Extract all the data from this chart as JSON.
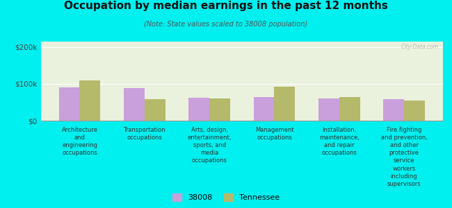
{
  "title": "Occupation by median earnings in the past 12 months",
  "subtitle": "(Note: State values scaled to 38008 population)",
  "background_color": "#00EFEF",
  "plot_bg_color": "#eaf2de",
  "categories": [
    "Architecture\nand\nengineering\noccupations",
    "Transportation\noccupations",
    "Arts, design,\nentertainment,\nsports, and\nmedia\noccupations",
    "Management\noccupations",
    "Installation,\nmaintenance,\nand repair\noccupations",
    "Fire fighting\nand prevention,\nand other\nprotective\nservice\nworkers\nincluding\nsupervisors"
  ],
  "values_38008": [
    90000,
    88000,
    62000,
    65000,
    60000,
    58000
  ],
  "values_tennessee": [
    110000,
    58000,
    60000,
    92000,
    65000,
    55000
  ],
  "color_38008": "#c9a0dc",
  "color_tennessee": "#b5b96a",
  "yticks": [
    0,
    100000,
    200000
  ],
  "ytick_labels": [
    "$0",
    "$100k",
    "$200k"
  ],
  "ylim": [
    0,
    215000
  ],
  "legend_38008": "38008",
  "legend_tennessee": "Tennessee",
  "watermark": "City-Data.com"
}
